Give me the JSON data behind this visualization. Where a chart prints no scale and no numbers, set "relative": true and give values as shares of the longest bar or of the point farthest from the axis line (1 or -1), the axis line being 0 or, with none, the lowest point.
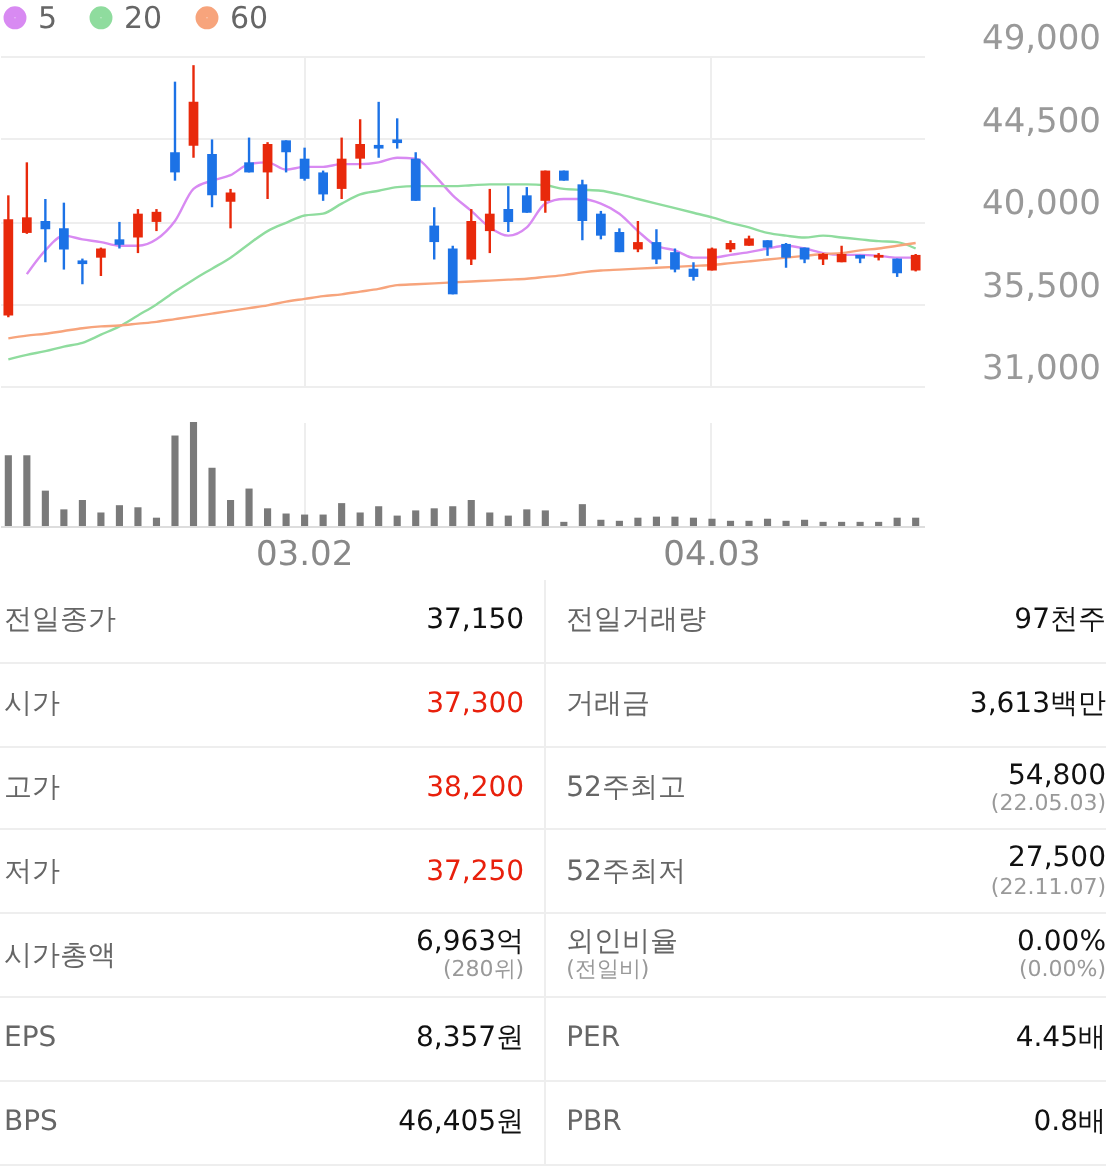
{
  "chart_data": [
    {
      "type": "candlestick",
      "categories": [
        null,
        null,
        null,
        null,
        null,
        null,
        null,
        null,
        null,
        null,
        null,
        null,
        null,
        null,
        null,
        null,
        "03.02",
        null,
        null,
        null,
        null,
        null,
        null,
        null,
        null,
        null,
        null,
        null,
        null,
        null,
        null,
        null,
        null,
        null,
        null,
        null,
        null,
        null,
        "04.03",
        null,
        null,
        null,
        null,
        null,
        null,
        null,
        null,
        null,
        null,
        null
      ],
      "ohlc": [
        [
          34850,
          41400,
          34750,
          40100
        ],
        [
          39350,
          43200,
          39300,
          40200
        ],
        [
          40000,
          41200,
          37750,
          39550
        ],
        [
          39600,
          41000,
          37350,
          38450
        ],
        [
          37850,
          37950,
          36550,
          37650
        ],
        [
          38000,
          38550,
          37000,
          38500
        ],
        [
          39000,
          39950,
          38500,
          38700
        ],
        [
          39100,
          40650,
          38250,
          40400
        ],
        [
          39950,
          40650,
          39450,
          40500
        ],
        [
          43750,
          47600,
          42200,
          42650
        ],
        [
          44100,
          48500,
          43450,
          46500
        ],
        [
          43650,
          44450,
          40750,
          41400
        ],
        [
          41050,
          41750,
          39600,
          41550
        ],
        [
          43200,
          44550,
          42650,
          42650
        ],
        [
          42650,
          44300,
          41200,
          44200
        ],
        [
          44400,
          44400,
          42650,
          43750
        ],
        [
          43400,
          44000,
          42200,
          42300
        ],
        [
          42650,
          42750,
          41100,
          41450
        ],
        [
          41750,
          44550,
          41200,
          43400
        ],
        [
          43400,
          45550,
          42850,
          44200
        ],
        [
          44150,
          46500,
          43450,
          43950
        ],
        [
          44450,
          45600,
          43950,
          44250
        ],
        [
          43400,
          43750,
          41100,
          41100
        ],
        [
          39750,
          40750,
          37900,
          38850
        ],
        [
          38500,
          38650,
          36000,
          36000
        ],
        [
          37900,
          40650,
          37600,
          40000
        ],
        [
          39450,
          41750,
          38250,
          40400
        ],
        [
          40650,
          41900,
          39400,
          39950
        ],
        [
          41400,
          41850,
          40450,
          40450
        ],
        [
          41100,
          42750,
          40450,
          42750
        ],
        [
          42750,
          42750,
          42200,
          42200
        ],
        [
          42000,
          42250,
          38950,
          40000
        ],
        [
          40400,
          40550,
          39000,
          39200
        ],
        [
          39400,
          39600,
          38300,
          38300
        ],
        [
          38450,
          40000,
          38300,
          38850
        ],
        [
          38850,
          39550,
          37650,
          37900
        ],
        [
          38300,
          38500,
          37200,
          37350
        ],
        [
          37400,
          37750,
          36750,
          36950
        ],
        [
          37300,
          38550,
          37300,
          38500
        ],
        [
          38450,
          38950,
          38300,
          38800
        ],
        [
          38650,
          39200,
          38650,
          39050
        ],
        [
          38950,
          38950,
          38100,
          38550
        ],
        [
          38750,
          38800,
          37450,
          38000
        ],
        [
          38550,
          38550,
          37700,
          37900
        ],
        [
          37900,
          38250,
          37600,
          38200
        ],
        [
          37750,
          38650,
          37750,
          38200
        ],
        [
          38150,
          38150,
          37700,
          37950
        ],
        [
          38000,
          38250,
          37850,
          38150
        ],
        [
          37950,
          37950,
          36950,
          37150
        ],
        [
          37300,
          38200,
          37250,
          38150
        ]
      ],
      "colors": [
        "#e8290b",
        "#e8290b",
        "#1c72e6",
        "#1c72e6",
        "#1c72e6",
        "#e8290b",
        "#1c72e6",
        "#e8290b",
        "#e8290b",
        "#1c72e6",
        "#e8290b",
        "#1c72e6",
        "#e8290b",
        "#1c72e6",
        "#e8290b",
        "#1c72e6",
        "#1c72e6",
        "#1c72e6",
        "#e8290b",
        "#e8290b",
        "#1c72e6",
        "#1c72e6",
        "#1c72e6",
        "#1c72e6",
        "#1c72e6",
        "#e8290b",
        "#e8290b",
        "#1c72e6",
        "#1c72e6",
        "#e8290b",
        "#1c72e6",
        "#1c72e6",
        "#1c72e6",
        "#1c72e6",
        "#e8290b",
        "#1c72e6",
        "#1c72e6",
        "#1c72e6",
        "#e8290b",
        "#e8290b",
        "#e8290b",
        "#1c72e6",
        "#1c72e6",
        "#1c72e6",
        "#e8290b",
        "#e8290b",
        "#1c72e6",
        "#e8290b",
        "#1c72e6",
        "#e8290b"
      ],
      "series": [
        {
          "name": "5",
          "type": "line",
          "color": "#d88af2",
          "values": [
            null,
            37100,
            38400,
            39200,
            39000,
            38850,
            38650,
            38650,
            39000,
            40000,
            41750,
            42200,
            42500,
            43100,
            43200,
            42800,
            42950,
            42950,
            43100,
            43100,
            43200,
            43450,
            43400,
            42500,
            41400,
            40550,
            39650,
            39200,
            39650,
            40950,
            41200,
            41200,
            40950,
            40400,
            39450,
            38650,
            38400,
            38000,
            38000,
            38150,
            38300,
            38500,
            38650,
            38500,
            38250,
            38150,
            38150,
            38100,
            38000,
            38000
          ]
        },
        {
          "name": "20",
          "type": "line",
          "color": "#8fdc9e",
          "values": [
            32450,
            32700,
            32900,
            33150,
            33350,
            33800,
            34250,
            34850,
            35450,
            36150,
            36800,
            37400,
            38000,
            38750,
            39450,
            39900,
            40300,
            40400,
            40950,
            41450,
            41650,
            41850,
            41900,
            41900,
            41900,
            41950,
            42000,
            42000,
            42000,
            41950,
            41750,
            41700,
            41650,
            41450,
            41200,
            40950,
            40700,
            40450,
            40200,
            39900,
            39650,
            39350,
            39200,
            39100,
            39200,
            39100,
            39000,
            38900,
            38850,
            38500
          ]
        },
        {
          "name": "60",
          "type": "line",
          "color": "#f7a47c",
          "values": [
            33600,
            33750,
            33850,
            34000,
            34150,
            34250,
            34300,
            34400,
            34500,
            34650,
            34800,
            34950,
            35100,
            35250,
            35400,
            35600,
            35750,
            35900,
            36000,
            36150,
            36300,
            36500,
            36550,
            36600,
            36650,
            36700,
            36750,
            36800,
            36850,
            36950,
            37050,
            37200,
            37300,
            37350,
            37400,
            37450,
            37500,
            37550,
            37600,
            37700,
            37800,
            37900,
            38000,
            38100,
            38200,
            38250,
            38400,
            38500,
            38650,
            38800
          ]
        }
      ],
      "ylim": [
        31000,
        49000
      ],
      "yticks": [
        {
          "value": 31000,
          "label": "31,000"
        },
        {
          "value": 35500,
          "label": "35,500"
        },
        {
          "value": 40000,
          "label": "40,000"
        },
        {
          "value": 44500,
          "label": "44,500"
        },
        {
          "value": 49000,
          "label": "49,000"
        }
      ],
      "grid": true,
      "legend": "top left",
      "tick_labels": "y"
    },
    {
      "type": "bar",
      "relative": true,
      "color": "#7a7a7a",
      "grid": "x",
      "tick_labels": "x",
      "categories": [
        null,
        null,
        null,
        null,
        null,
        null,
        null,
        null,
        null,
        null,
        null,
        null,
        null,
        null,
        null,
        null,
        "03.02",
        null,
        null,
        null,
        null,
        null,
        null,
        null,
        null,
        null,
        null,
        null,
        null,
        null,
        null,
        null,
        null,
        null,
        null,
        null,
        null,
        null,
        "04.03",
        null,
        null,
        null,
        null,
        null,
        null,
        null,
        null,
        null,
        null,
        null
      ],
      "values": [
        0.68,
        0.68,
        0.34,
        0.16,
        0.25,
        0.13,
        0.2,
        0.18,
        0.08,
        0.87,
        1,
        0.56,
        0.25,
        0.36,
        0.17,
        0.12,
        0.11,
        0.11,
        0.22,
        0.13,
        0.19,
        0.1,
        0.15,
        0.17,
        0.19,
        0.25,
        0.13,
        0.1,
        0.16,
        0.15,
        0.04,
        0.21,
        0.06,
        0.05,
        0.08,
        0.09,
        0.09,
        0.08,
        0.07,
        0.05,
        0.05,
        0.07,
        0.05,
        0.06,
        0.04,
        0.04,
        0.04,
        0.04,
        0.08,
        0.08
      ]
    },
    {
      "type": "other",
      "annotations": [
        "전일종가",
        "37,150",
        "전일거래량",
        "97천주",
        "시가",
        "37,300",
        "거래금",
        "3,613백만",
        "고가",
        "38,200",
        "52주최고",
        "54,800\n(22.05.03)",
        "저가",
        "37,250",
        "52주최저",
        "27,500\n(22.11.07)",
        "시가총액",
        "6,963억\n(280위)",
        "외인비율\n(전일비)",
        "0.00%\n(0.00%)",
        "EPS",
        "8,357원",
        "PER",
        "4.45배",
        "BPS",
        "46,405원",
        "PBR",
        "0.8배"
      ],
      "colors": [
        "#666666",
        "#111111",
        "#666666",
        "#111111",
        "#666666",
        "#e8200c",
        "#666666",
        "#111111",
        "#666666",
        "#e8200c",
        "#666666",
        "#111111",
        "#666666",
        "#e8200c",
        "#666666",
        "#111111",
        "#666666",
        "#111111",
        "#666666",
        "#111111",
        "#666666",
        "#111111",
        "#666666",
        "#111111",
        "#666666",
        "#111111",
        "#666666",
        "#111111"
      ]
    }
  ]
}
